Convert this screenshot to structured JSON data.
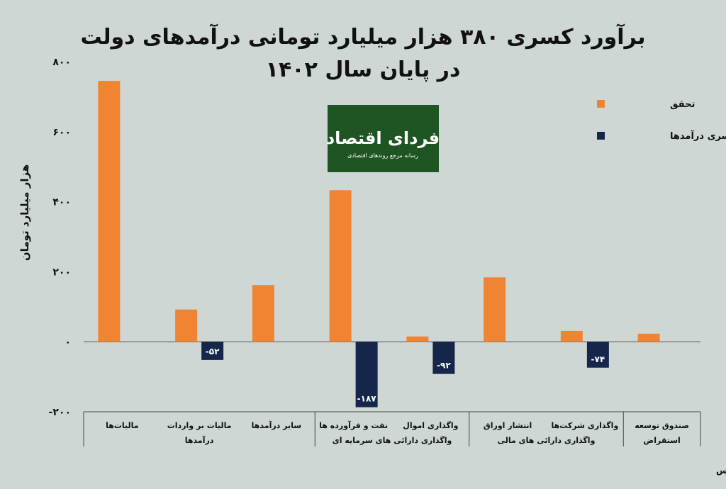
{
  "title_line1": "برآورد کسری ۳۸۰ هزار میلیارد تومانی درآمدهای دولت",
  "title_line2": "در پایان سال ۱۴۰۲",
  "logo": {
    "main": "فردای اقتصاد",
    "tagline": "رسانه مرجع روندهای اقتصادی"
  },
  "source": "منبع: مرکز پژوهش‌های مجلس",
  "colors": {
    "background": "#cfd7d5",
    "realized": "#ef8433",
    "deficit": "#15264a",
    "logo_bg": "#1f5522"
  },
  "chart_data": {
    "type": "bar",
    "ylabel": "هزار میلیارد تومان",
    "ylim": [
      -200,
      800
    ],
    "yticks": [
      "۸۰۰",
      "۶۰۰",
      "۴۰۰",
      "۲۰۰",
      "۰",
      "-۲۰۰"
    ],
    "ytick_values": [
      800,
      600,
      400,
      200,
      0,
      -200
    ],
    "categories": [
      "مالیات‌ها",
      "مالیات بر واردات",
      "سایر درآمدها",
      "نفت و فرآورده ها",
      "واگذاری اموال",
      "انتشار اوراق",
      "واگذاری شرکت‌ها",
      "صندوق توسعه"
    ],
    "category_line2": [
      "",
      "",
      "",
      "",
      "",
      "",
      "",
      "استقراض"
    ],
    "groups": [
      {
        "label": "درآمدها",
        "span": [
          0,
          2
        ]
      },
      {
        "label": "واگذاری دارائی های سرمایه ای",
        "span": [
          3,
          4
        ]
      },
      {
        "label": "واگذاری دارائی های مالی",
        "span": [
          5,
          6
        ]
      },
      {
        "label": "",
        "span": [
          7,
          7
        ]
      }
    ],
    "series": [
      {
        "name": "تحقق",
        "values": [
          745,
          92,
          162,
          433,
          15,
          184,
          31,
          23
        ]
      },
      {
        "name": "کسری درآمدها",
        "values": [
          null,
          -52,
          null,
          -187,
          -92,
          null,
          -74,
          null
        ]
      }
    ],
    "data_labels": [
      null,
      "-۵۲",
      null,
      "-۱۸۷",
      "-۹۲",
      null,
      "-۷۴",
      null
    ],
    "legend_position": "top-right"
  }
}
